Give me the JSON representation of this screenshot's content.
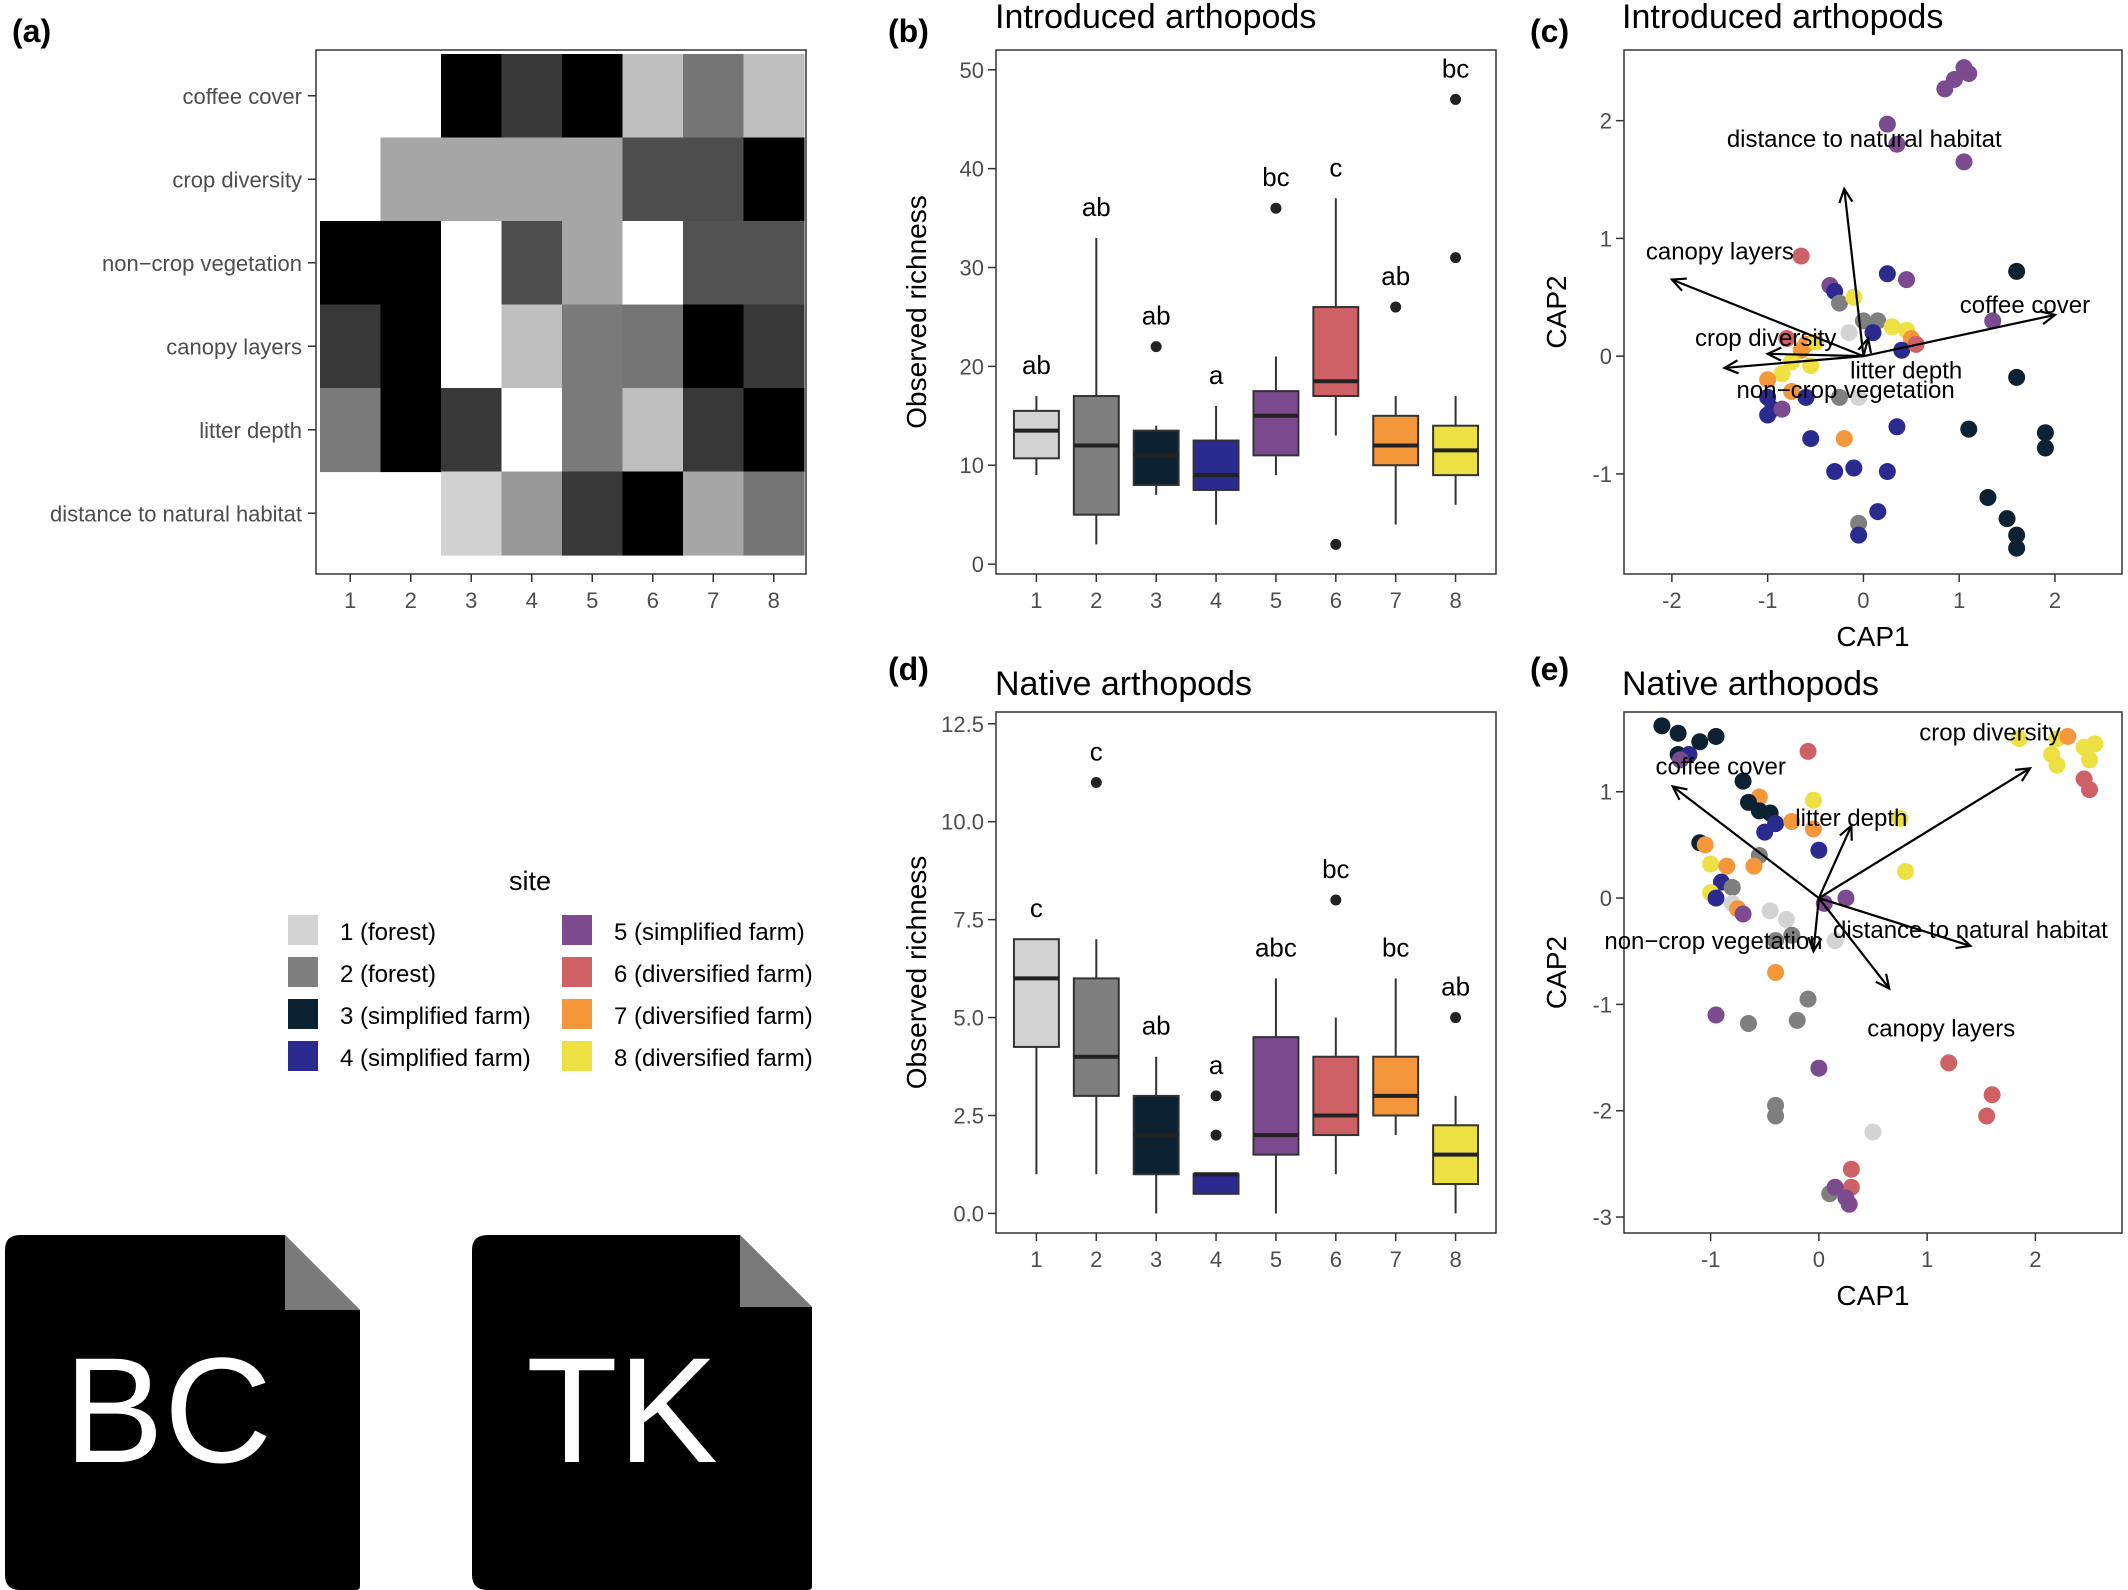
{
  "panels": {
    "a": {
      "label": "(a)"
    },
    "b": {
      "label": "(b)",
      "title": "Introduced arthopods"
    },
    "c": {
      "label": "(c)",
      "title": "Introduced arthopods"
    },
    "d": {
      "label": "(d)",
      "title": "Native arthopods"
    },
    "e": {
      "label": "(e)",
      "title": "Native arthopods"
    }
  },
  "legend": {
    "title": "site",
    "items": [
      {
        "label": "1 (forest)",
        "color": "#d3d3d3"
      },
      {
        "label": "2 (forest)",
        "color": "#7f7f7f"
      },
      {
        "label": "3 (simplified farm)",
        "color": "#0c2233"
      },
      {
        "label": "4 (simplified farm)",
        "color": "#2b2b8f"
      },
      {
        "label": "5 (simplified farm)",
        "color": "#7c4a8f"
      },
      {
        "label": "6 (diversified farm)",
        "color": "#cd6166"
      },
      {
        "label": "7 (diversified farm)",
        "color": "#f4963a"
      },
      {
        "label": "8 (diversified farm)",
        "color": "#ece042"
      }
    ]
  },
  "file_icons": [
    {
      "text": "BC",
      "icon": "file-icon"
    },
    {
      "text": "TK",
      "icon": "file-icon"
    }
  ],
  "chart_data": [
    {
      "id": "a",
      "type": "heatmap",
      "x_categories": [
        "1",
        "2",
        "3",
        "4",
        "5",
        "6",
        "7",
        "8"
      ],
      "y_categories": [
        "coffee cover",
        "crop diversity",
        "non−crop vegetation",
        "canopy layers",
        "litter depth",
        "distance to natural habitat"
      ],
      "values": [
        [
          null,
          null,
          0.0,
          0.22,
          0.0,
          0.75,
          0.46,
          0.75
        ],
        [
          null,
          0.65,
          0.65,
          0.65,
          0.65,
          0.3,
          0.3,
          0.0
        ],
        [
          0.0,
          0.0,
          1.0,
          0.3,
          0.65,
          1.0,
          0.32,
          0.32
        ],
        [
          0.22,
          0.0,
          1.0,
          0.75,
          0.48,
          0.46,
          0.0,
          0.22
        ],
        [
          0.48,
          0.0,
          0.22,
          1.0,
          0.48,
          0.75,
          0.22,
          0.0
        ],
        [
          null,
          null,
          0.82,
          0.6,
          0.22,
          0.0,
          0.65,
          0.46
        ]
      ]
    },
    {
      "id": "b",
      "type": "box",
      "title": "Introduced arthopods",
      "ylabel": "Observed richness",
      "categories": [
        "1",
        "2",
        "3",
        "4",
        "5",
        "6",
        "7",
        "8"
      ],
      "ylim": [
        -1,
        52
      ],
      "yticks": [
        0,
        10,
        20,
        30,
        40,
        50
      ],
      "boxes": [
        {
          "min": 9,
          "q1": 10.7,
          "median": 13.5,
          "q3": 15.5,
          "max": 17,
          "outliers": [],
          "group": "ab"
        },
        {
          "min": 2,
          "q1": 5,
          "median": 12,
          "q3": 17,
          "max": 33,
          "outliers": [],
          "group": "ab"
        },
        {
          "min": 7,
          "q1": 8,
          "median": 11,
          "q3": 13.5,
          "max": 14,
          "outliers": [
            22
          ],
          "group": "ab"
        },
        {
          "min": 4,
          "q1": 7.5,
          "median": 9,
          "q3": 12.5,
          "max": 16,
          "outliers": [],
          "group": "a"
        },
        {
          "min": 9,
          "q1": 11,
          "median": 15,
          "q3": 17.5,
          "max": 21,
          "outliers": [
            36
          ],
          "group": "bc"
        },
        {
          "min": 13,
          "q1": 17,
          "median": 18.5,
          "q3": 26,
          "max": 37,
          "outliers": [
            2
          ],
          "group": "c"
        },
        {
          "min": 4,
          "q1": 10,
          "median": 12,
          "q3": 15,
          "max": 17,
          "outliers": [
            26
          ],
          "group": "ab"
        },
        {
          "min": 6,
          "q1": 9,
          "median": 11.5,
          "q3": 14,
          "max": 17,
          "outliers": [
            31,
            47
          ],
          "group": "bc"
        }
      ]
    },
    {
      "id": "c",
      "type": "scatter",
      "title": "Introduced arthopods",
      "xlabel": "CAP1",
      "ylabel": "CAP2",
      "xlim": [
        -2.5,
        2.7
      ],
      "ylim": [
        -1.85,
        2.6
      ],
      "xticks": [
        -2,
        -1,
        0,
        1,
        2
      ],
      "yticks": [
        -1,
        0,
        1,
        2
      ],
      "arrows": [
        {
          "label": "distance to natural habitat",
          "x": -0.2,
          "y": 1.42
        },
        {
          "label": "canopy layers",
          "x": -2.0,
          "y": 0.65
        },
        {
          "label": "coffee cover",
          "x": 2.0,
          "y": 0.35
        },
        {
          "label": "crop diversity",
          "x": -1.0,
          "y": 0.02
        },
        {
          "label": "non−crop vegetation",
          "x": -1.45,
          "y": -0.1
        },
        {
          "label": "litter depth",
          "x": 0.05,
          "y": 0.15
        }
      ],
      "points": [
        {
          "x": 0.95,
          "y": 2.35,
          "site": 5
        },
        {
          "x": 1.05,
          "y": 2.45,
          "site": 5
        },
        {
          "x": 0.85,
          "y": 2.27,
          "site": 5
        },
        {
          "x": 1.1,
          "y": 2.4,
          "site": 5
        },
        {
          "x": 0.25,
          "y": 1.97,
          "site": 5
        },
        {
          "x": 0.35,
          "y": 1.8,
          "site": 5
        },
        {
          "x": 1.05,
          "y": 1.65,
          "site": 5
        },
        {
          "x": -0.65,
          "y": 0.85,
          "site": 6
        },
        {
          "x": -0.35,
          "y": 0.6,
          "site": 5
        },
        {
          "x": -0.3,
          "y": 0.55,
          "site": 4
        },
        {
          "x": 0.25,
          "y": 0.7,
          "site": 4
        },
        {
          "x": 0.45,
          "y": 0.65,
          "site": 5
        },
        {
          "x": 1.6,
          "y": 0.72,
          "site": 3
        },
        {
          "x": 1.35,
          "y": 0.3,
          "site": 5
        },
        {
          "x": -0.25,
          "y": 0.45,
          "site": 2
        },
        {
          "x": -0.1,
          "y": 0.5,
          "site": 8
        },
        {
          "x": 0.0,
          "y": 0.3,
          "site": 2
        },
        {
          "x": 0.15,
          "y": 0.3,
          "site": 2
        },
        {
          "x": -0.15,
          "y": 0.2,
          "site": 1
        },
        {
          "x": 0.1,
          "y": 0.2,
          "site": 4
        },
        {
          "x": 0.3,
          "y": 0.25,
          "site": 8
        },
        {
          "x": 0.45,
          "y": 0.22,
          "site": 8
        },
        {
          "x": 0.5,
          "y": 0.15,
          "site": 7
        },
        {
          "x": 0.4,
          "y": 0.05,
          "site": 4
        },
        {
          "x": 0.55,
          "y": 0.1,
          "site": 6
        },
        {
          "x": -0.8,
          "y": 0.15,
          "site": 6
        },
        {
          "x": -0.6,
          "y": 0.1,
          "site": 7
        },
        {
          "x": -0.5,
          "y": 0.12,
          "site": 8
        },
        {
          "x": -0.65,
          "y": 0.05,
          "site": 7
        },
        {
          "x": -0.75,
          "y": -0.05,
          "site": 8
        },
        {
          "x": -0.55,
          "y": -0.08,
          "site": 8
        },
        {
          "x": -0.85,
          "y": -0.15,
          "site": 8
        },
        {
          "x": -1.0,
          "y": -0.2,
          "site": 7
        },
        {
          "x": -1.0,
          "y": -0.35,
          "site": 4
        },
        {
          "x": -0.75,
          "y": -0.3,
          "site": 7
        },
        {
          "x": -0.6,
          "y": -0.35,
          "site": 4
        },
        {
          "x": -0.95,
          "y": -0.45,
          "site": 4
        },
        {
          "x": -1.0,
          "y": -0.5,
          "site": 4
        },
        {
          "x": -0.85,
          "y": -0.45,
          "site": 5
        },
        {
          "x": -0.25,
          "y": -0.35,
          "site": 2
        },
        {
          "x": -0.05,
          "y": -0.35,
          "site": 1
        },
        {
          "x": -0.55,
          "y": -0.7,
          "site": 4
        },
        {
          "x": -0.2,
          "y": -0.7,
          "site": 7
        },
        {
          "x": 0.35,
          "y": -0.6,
          "site": 4
        },
        {
          "x": 1.6,
          "y": -0.18,
          "site": 3
        },
        {
          "x": 1.1,
          "y": -0.62,
          "site": 3
        },
        {
          "x": 1.9,
          "y": -0.65,
          "site": 3
        },
        {
          "x": 1.9,
          "y": -0.78,
          "site": 3
        },
        {
          "x": -0.1,
          "y": -0.95,
          "site": 4
        },
        {
          "x": -0.3,
          "y": -0.98,
          "site": 4
        },
        {
          "x": 0.25,
          "y": -0.98,
          "site": 4
        },
        {
          "x": 1.3,
          "y": -1.2,
          "site": 3
        },
        {
          "x": 1.5,
          "y": -1.38,
          "site": 3
        },
        {
          "x": 1.6,
          "y": -1.52,
          "site": 3
        },
        {
          "x": 1.6,
          "y": -1.63,
          "site": 3
        },
        {
          "x": 0.15,
          "y": -1.32,
          "site": 4
        },
        {
          "x": -0.05,
          "y": -1.42,
          "site": 2
        },
        {
          "x": -0.05,
          "y": -1.52,
          "site": 4
        }
      ]
    },
    {
      "id": "d",
      "type": "box",
      "title": "Native arthopods",
      "ylabel": "Observed richness",
      "categories": [
        "1",
        "2",
        "3",
        "4",
        "5",
        "6",
        "7",
        "8"
      ],
      "ylim": [
        -0.5,
        12.8
      ],
      "yticks": [
        "0.0",
        "2.5",
        "5.0",
        "7.5",
        "10.0",
        "12.5"
      ],
      "boxes": [
        {
          "min": 1,
          "q1": 4.25,
          "median": 6,
          "q3": 7,
          "max": 7,
          "outliers": [],
          "group": "c"
        },
        {
          "min": 1,
          "q1": 3,
          "median": 4,
          "q3": 6,
          "max": 7,
          "outliers": [
            11
          ],
          "group": "c"
        },
        {
          "min": 0,
          "q1": 1,
          "median": 2,
          "q3": 3,
          "max": 4,
          "outliers": [],
          "group": "ab"
        },
        {
          "min": 0.5,
          "q1": 0.5,
          "median": 1,
          "q3": 1,
          "max": 1,
          "outliers": [
            2,
            3
          ],
          "group": "a"
        },
        {
          "min": 0,
          "q1": 1.5,
          "median": 2,
          "q3": 4.5,
          "max": 6,
          "outliers": [],
          "group": "abc"
        },
        {
          "min": 1,
          "q1": 2,
          "median": 2.5,
          "q3": 4,
          "max": 5,
          "outliers": [
            8
          ],
          "group": "bc"
        },
        {
          "min": 2,
          "q1": 2.5,
          "median": 3,
          "q3": 4,
          "max": 6,
          "outliers": [],
          "group": "bc"
        },
        {
          "min": 0,
          "q1": 0.75,
          "median": 1.5,
          "q3": 2.25,
          "max": 3,
          "outliers": [
            5
          ],
          "group": "ab"
        }
      ]
    },
    {
      "id": "e",
      "type": "scatter",
      "title": "Native arthopods",
      "xlabel": "CAP1",
      "ylabel": "CAP2",
      "xlim": [
        -1.8,
        2.8
      ],
      "ylim": [
        -3.15,
        1.75
      ],
      "xticks": [
        -1,
        0,
        1,
        2
      ],
      "yticks": [
        -3,
        -2,
        -1,
        0,
        1
      ],
      "arrows": [
        {
          "label": "crop diversity",
          "x": 1.95,
          "y": 1.22
        },
        {
          "label": "coffee cover",
          "x": -1.35,
          "y": 1.05
        },
        {
          "label": "litter depth",
          "x": 0.3,
          "y": 0.68
        },
        {
          "label": "distance to natural habitat",
          "x": 1.4,
          "y": -0.45
        },
        {
          "label": "non−crop vegetation",
          "x": -0.05,
          "y": -0.5
        },
        {
          "label": "canopy layers",
          "x": 0.65,
          "y": -0.85
        }
      ],
      "points": [
        {
          "x": -1.45,
          "y": 1.62,
          "site": 3
        },
        {
          "x": -1.3,
          "y": 1.55,
          "site": 3
        },
        {
          "x": -1.1,
          "y": 1.47,
          "site": 3
        },
        {
          "x": -0.95,
          "y": 1.52,
          "site": 3
        },
        {
          "x": -1.3,
          "y": 1.35,
          "site": 3
        },
        {
          "x": -1.2,
          "y": 1.35,
          "site": 4
        },
        {
          "x": -1.28,
          "y": 1.3,
          "site": 5
        },
        {
          "x": -0.7,
          "y": 1.1,
          "site": 3
        },
        {
          "x": -0.55,
          "y": 0.95,
          "site": 7
        },
        {
          "x": -0.65,
          "y": 0.9,
          "site": 3
        },
        {
          "x": -0.55,
          "y": 0.82,
          "site": 3
        },
        {
          "x": -0.45,
          "y": 0.8,
          "site": 3
        },
        {
          "x": -0.4,
          "y": 0.7,
          "site": 4
        },
        {
          "x": -0.5,
          "y": 0.62,
          "site": 4
        },
        {
          "x": -0.1,
          "y": 1.38,
          "site": 6
        },
        {
          "x": -0.05,
          "y": 0.92,
          "site": 8
        },
        {
          "x": -0.25,
          "y": 0.72,
          "site": 7
        },
        {
          "x": -0.05,
          "y": 0.65,
          "site": 7
        },
        {
          "x": 0.0,
          "y": 0.45,
          "site": 4
        },
        {
          "x": -0.55,
          "y": 0.4,
          "site": 2
        },
        {
          "x": -0.6,
          "y": 0.3,
          "site": 7
        },
        {
          "x": -1.1,
          "y": 0.52,
          "site": 3
        },
        {
          "x": -1.05,
          "y": 0.5,
          "site": 7
        },
        {
          "x": -1.0,
          "y": 0.32,
          "site": 8
        },
        {
          "x": -0.85,
          "y": 0.3,
          "site": 7
        },
        {
          "x": -0.9,
          "y": 0.15,
          "site": 4
        },
        {
          "x": -0.8,
          "y": 0.1,
          "site": 2
        },
        {
          "x": -1.0,
          "y": 0.05,
          "site": 8
        },
        {
          "x": -0.95,
          "y": 0.0,
          "site": 4
        },
        {
          "x": -0.8,
          "y": -0.05,
          "site": 1
        },
        {
          "x": -0.75,
          "y": -0.1,
          "site": 7
        },
        {
          "x": -0.7,
          "y": -0.15,
          "site": 5
        },
        {
          "x": -0.45,
          "y": -0.12,
          "site": 1
        },
        {
          "x": -0.3,
          "y": -0.2,
          "site": 1
        },
        {
          "x": -0.4,
          "y": -0.4,
          "site": 2
        },
        {
          "x": -0.25,
          "y": -0.35,
          "site": 2
        },
        {
          "x": 0.05,
          "y": -0.05,
          "site": 5
        },
        {
          "x": 0.25,
          "y": 0.0,
          "site": 5
        },
        {
          "x": 0.15,
          "y": -0.4,
          "site": 1
        },
        {
          "x": -0.4,
          "y": -0.7,
          "site": 7
        },
        {
          "x": -0.1,
          "y": -0.95,
          "site": 2
        },
        {
          "x": -0.2,
          "y": -1.15,
          "site": 2
        },
        {
          "x": -0.65,
          "y": -1.18,
          "site": 2
        },
        {
          "x": -0.95,
          "y": -1.1,
          "site": 5
        },
        {
          "x": 0.75,
          "y": 0.75,
          "site": 8
        },
        {
          "x": 0.8,
          "y": 0.25,
          "site": 8
        },
        {
          "x": 0.0,
          "y": -1.6,
          "site": 5
        },
        {
          "x": -0.4,
          "y": -1.95,
          "site": 2
        },
        {
          "x": -0.4,
          "y": -2.05,
          "site": 2
        },
        {
          "x": 0.5,
          "y": -2.2,
          "site": 1
        },
        {
          "x": 1.2,
          "y": -1.55,
          "site": 6
        },
        {
          "x": 1.6,
          "y": -1.85,
          "site": 6
        },
        {
          "x": 1.55,
          "y": -2.05,
          "site": 6
        },
        {
          "x": 0.3,
          "y": -2.55,
          "site": 6
        },
        {
          "x": 0.3,
          "y": -2.72,
          "site": 6
        },
        {
          "x": 0.1,
          "y": -2.78,
          "site": 2
        },
        {
          "x": 0.15,
          "y": -2.72,
          "site": 5
        },
        {
          "x": 0.25,
          "y": -2.82,
          "site": 5
        },
        {
          "x": 0.28,
          "y": -2.88,
          "site": 5
        },
        {
          "x": 1.85,
          "y": 1.5,
          "site": 8
        },
        {
          "x": 2.2,
          "y": 1.5,
          "site": 8
        },
        {
          "x": 2.3,
          "y": 1.52,
          "site": 7
        },
        {
          "x": 2.45,
          "y": 1.42,
          "site": 8
        },
        {
          "x": 2.55,
          "y": 1.45,
          "site": 8
        },
        {
          "x": 2.5,
          "y": 1.3,
          "site": 8
        },
        {
          "x": 2.2,
          "y": 1.25,
          "site": 8
        },
        {
          "x": 2.45,
          "y": 1.12,
          "site": 6
        },
        {
          "x": 2.5,
          "y": 1.02,
          "site": 6
        },
        {
          "x": 2.15,
          "y": 1.35,
          "site": 8
        }
      ]
    }
  ]
}
